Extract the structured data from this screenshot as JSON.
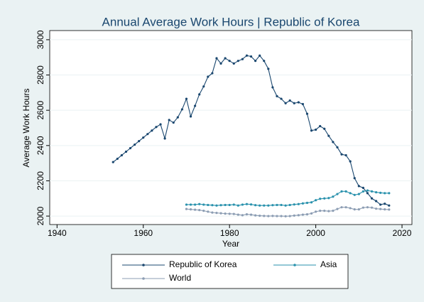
{
  "chart_data": {
    "type": "line",
    "title": "Annual Average Work Hours | Republic of Korea",
    "x_label": "Year",
    "y_label": "Average Work Hours",
    "x": [
      1953,
      1954,
      1955,
      1956,
      1957,
      1958,
      1959,
      1960,
      1961,
      1962,
      1963,
      1964,
      1965,
      1966,
      1967,
      1968,
      1969,
      1970,
      1971,
      1972,
      1973,
      1974,
      1975,
      1976,
      1977,
      1978,
      1979,
      1980,
      1981,
      1982,
      1983,
      1984,
      1985,
      1986,
      1987,
      1988,
      1989,
      1990,
      1991,
      1992,
      1993,
      1994,
      1995,
      1996,
      1997,
      1998,
      1999,
      2000,
      2001,
      2002,
      2003,
      2004,
      2005,
      2006,
      2007,
      2008,
      2009,
      2010,
      2011,
      2012,
      2013,
      2014,
      2015,
      2016,
      2017
    ],
    "series": [
      {
        "name": "Republic of Korea",
        "color": "#1a476f",
        "values": [
          2306,
          2325,
          2345,
          2365,
          2385,
          2405,
          2425,
          2445,
          2465,
          2485,
          2505,
          2520,
          2440,
          2545,
          2530,
          2560,
          2605,
          2665,
          2565,
          2625,
          2690,
          2735,
          2790,
          2810,
          2895,
          2865,
          2895,
          2880,
          2865,
          2880,
          2890,
          2910,
          2905,
          2880,
          2910,
          2880,
          2835,
          2730,
          2680,
          2665,
          2640,
          2655,
          2640,
          2645,
          2635,
          2580,
          2485,
          2490,
          2510,
          2495,
          2455,
          2420,
          2390,
          2350,
          2345,
          2310,
          2215,
          2170,
          2160,
          2130,
          2100,
          2085,
          2065,
          2070,
          2060
        ]
      },
      {
        "name": "Asia",
        "color": "#2a92ad",
        "values": [
          null,
          null,
          null,
          null,
          null,
          null,
          null,
          null,
          null,
          null,
          null,
          null,
          null,
          null,
          null,
          null,
          null,
          2065,
          2065,
          2065,
          2068,
          2065,
          2063,
          2062,
          2060,
          2062,
          2063,
          2063,
          2065,
          2060,
          2065,
          2068,
          2066,
          2062,
          2060,
          2060,
          2060,
          2062,
          2063,
          2063,
          2060,
          2063,
          2066,
          2068,
          2072,
          2075,
          2078,
          2090,
          2098,
          2100,
          2102,
          2110,
          2125,
          2140,
          2140,
          2130,
          2120,
          2125,
          2140,
          2145,
          2140,
          2135,
          2132,
          2130,
          2130
        ]
      },
      {
        "name": "World",
        "color": "#8c9db3",
        "values": [
          null,
          null,
          null,
          null,
          null,
          null,
          null,
          null,
          null,
          null,
          null,
          null,
          null,
          null,
          null,
          null,
          null,
          2040,
          2038,
          2036,
          2034,
          2030,
          2025,
          2020,
          2018,
          2016,
          2014,
          2013,
          2012,
          2008,
          2005,
          2010,
          2008,
          2004,
          2002,
          2001,
          2000,
          2001,
          2000,
          2000,
          1999,
          2000,
          2003,
          2005,
          2008,
          2010,
          2015,
          2025,
          2030,
          2030,
          2028,
          2030,
          2040,
          2050,
          2050,
          2045,
          2038,
          2038,
          2048,
          2050,
          2048,
          2042,
          2040,
          2038,
          2037
        ]
      }
    ],
    "xlim": [
      1938.3,
      2022.3
    ],
    "xticks": [
      1940,
      1960,
      1980,
      2000,
      2020
    ],
    "ylim": [
      1952,
      3052
    ],
    "yticks": [
      2000,
      2200,
      2400,
      2600,
      2800,
      3000
    ],
    "grid": true,
    "legend": "bottom"
  }
}
